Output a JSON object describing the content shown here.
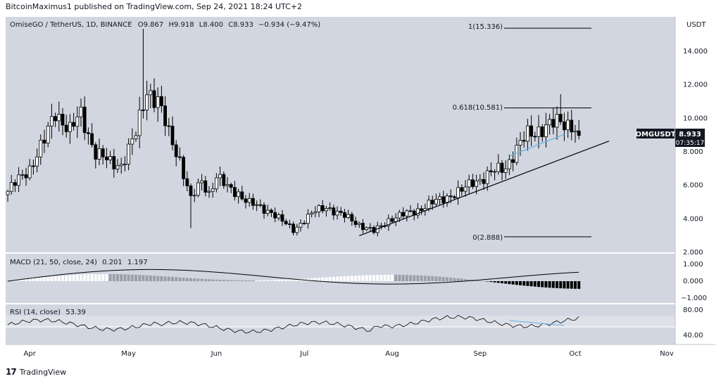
{
  "caption": "BitcoinMaximus1 published on TradingView.com, Sep 24, 2021 18:24 UTC+2",
  "legend": {
    "symbol": "OmiseGO / TetherUS, 1D, BINANCE",
    "open_label": "O",
    "open": "9.867",
    "high_label": "H",
    "high": "9.918",
    "low_label": "L",
    "low": "8.400",
    "close_label": "C",
    "close": "8.933",
    "change": "−0.934 (−9.47%)"
  },
  "currency": "USDT",
  "price_tag": {
    "symbol": "OMGUSDT",
    "price": "8.933",
    "countdown": "07:35:17"
  },
  "fib_labels": {
    "top": "1(15.336)",
    "mid": "0.618(10.581)",
    "bottom": "0(2.888)"
  },
  "macd": {
    "label": "MACD (21, 50, close, 24)",
    "v1": "0.201",
    "v2": "1.197",
    "ticks": [
      "1.000",
      "0.000",
      "−1.000"
    ]
  },
  "rsi": {
    "label": "RSI (14, close)",
    "value": "53.39",
    "ticks": [
      "80.00",
      "40.00"
    ]
  },
  "footer": {
    "brand_mark": "17",
    "brand": "TradingView"
  },
  "colors": {
    "pane_bg": "#d2d6e0",
    "candle": "#000000",
    "macd_pos_dark": "#ffffff",
    "macd_neg": "#000000",
    "macd_fade": "#9aa0aa",
    "trendline": "#000000",
    "blue_line": "#5fb4e8",
    "price_tag_bg": "#131722"
  },
  "chart_data": {
    "type": "candlestick",
    "title": "OmiseGO / TetherUS, 1D, BINANCE",
    "x_tick_labels": [
      "Apr",
      "May",
      "Jun",
      "Jul",
      "Aug",
      "Sep",
      "Oct",
      "Nov"
    ],
    "y_tick_labels": [
      "14.000",
      "12.000",
      "10.000",
      "8.000",
      "6.000",
      "4.000",
      "2.000"
    ],
    "ylim": [
      2,
      16
    ],
    "y_scale": "linear",
    "trend_sketch": [
      [
        0,
        5.6
      ],
      [
        6,
        7.0
      ],
      [
        10,
        8.6
      ],
      [
        13,
        10.4
      ],
      [
        17,
        9.2
      ],
      [
        20,
        10.2
      ],
      [
        24,
        7.9
      ],
      [
        28,
        7.3
      ],
      [
        31,
        7.2
      ],
      [
        35,
        9.0
      ],
      [
        38,
        11.7
      ],
      [
        41,
        11.0
      ],
      [
        44,
        9.0
      ],
      [
        47,
        7.5
      ],
      [
        50,
        5.1
      ],
      [
        53,
        6.2
      ],
      [
        55,
        5.5
      ],
      [
        57,
        6.5
      ],
      [
        60,
        5.8
      ],
      [
        63,
        5.5
      ],
      [
        66,
        4.9
      ],
      [
        69,
        4.6
      ],
      [
        72,
        4.4
      ],
      [
        75,
        3.8
      ],
      [
        78,
        3.3
      ],
      [
        81,
        3.9
      ],
      [
        84,
        4.4
      ],
      [
        87,
        4.7
      ],
      [
        90,
        4.3
      ],
      [
        94,
        3.9
      ],
      [
        97,
        3.5
      ],
      [
        100,
        3.2
      ],
      [
        104,
        3.9
      ],
      [
        108,
        4.2
      ],
      [
        112,
        4.5
      ],
      [
        116,
        4.9
      ],
      [
        120,
        5.3
      ],
      [
        124,
        5.6
      ],
      [
        127,
        6.2
      ],
      [
        130,
        6.4
      ],
      [
        133,
        6.8
      ],
      [
        136,
        7.1
      ],
      [
        139,
        8.1
      ],
      [
        142,
        9.0
      ],
      [
        145,
        9.3
      ],
      [
        148,
        9.5
      ],
      [
        151,
        9.8
      ],
      [
        154,
        9.6
      ],
      [
        156,
        8.9
      ]
    ],
    "fib_levels": [
      {
        "label": "1",
        "value": 15.336
      },
      {
        "label": "0.618",
        "value": 10.581
      },
      {
        "label": "0",
        "value": 2.888
      }
    ],
    "last_price": 8.933
  }
}
